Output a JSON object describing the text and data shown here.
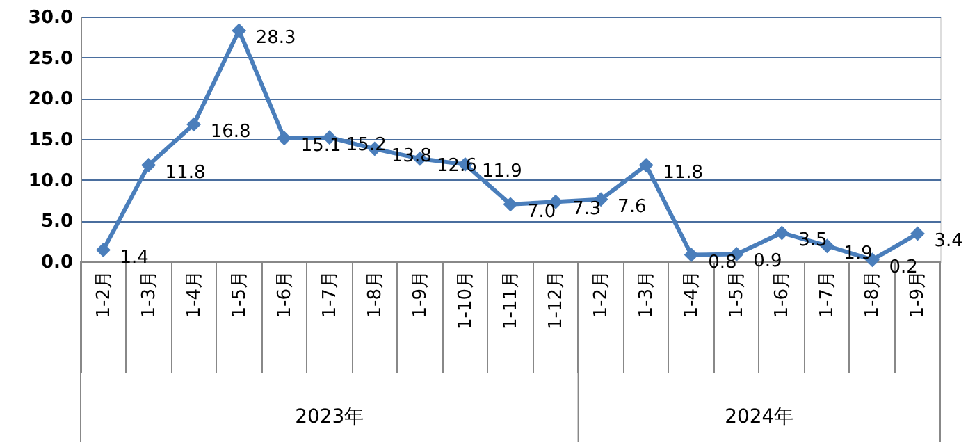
{
  "chart_data": {
    "type": "line",
    "categories": [
      "1-2月",
      "1-3月",
      "1-4月",
      "1-5月",
      "1-6月",
      "1-7月",
      "1-8月",
      "1-9月",
      "1-10月",
      "1-11月",
      "1-12月",
      "1-2月",
      "1-3月",
      "1-4月",
      "1-5月",
      "1-6月",
      "1-7月",
      "1-8月",
      "1-9月"
    ],
    "series": [
      {
        "color": "#4a7ebb",
        "values": [
          1.4,
          11.8,
          16.8,
          28.3,
          15.1,
          15.2,
          13.8,
          12.6,
          11.9,
          7.0,
          7.3,
          7.6,
          11.8,
          0.8,
          0.9,
          3.5,
          1.9,
          0.2,
          3.4
        ],
        "value_labels": [
          "1.4",
          "11.8",
          "16.8",
          "28.3",
          "15.1",
          "15.2",
          "13.8",
          "12.6",
          "11.9",
          "7.0",
          "7.3",
          "7.6",
          "11.8",
          "0.8",
          "0.9",
          "3.5",
          "1.9",
          "0.2",
          "3.4"
        ]
      }
    ],
    "ylim": [
      0,
      30
    ],
    "yticks": [
      {
        "value": 0,
        "label": "0.0"
      },
      {
        "value": 5,
        "label": "5.0"
      },
      {
        "value": 10,
        "label": "10.0"
      },
      {
        "value": 15,
        "label": "15.0"
      },
      {
        "value": 20,
        "label": "20.0"
      },
      {
        "value": 25,
        "label": "25.0"
      },
      {
        "value": 30,
        "label": "30.0"
      }
    ],
    "annotations": [
      "2023年",
      "2024年"
    ],
    "grid": "y",
    "marker": "diamond",
    "line_style": "solid"
  }
}
